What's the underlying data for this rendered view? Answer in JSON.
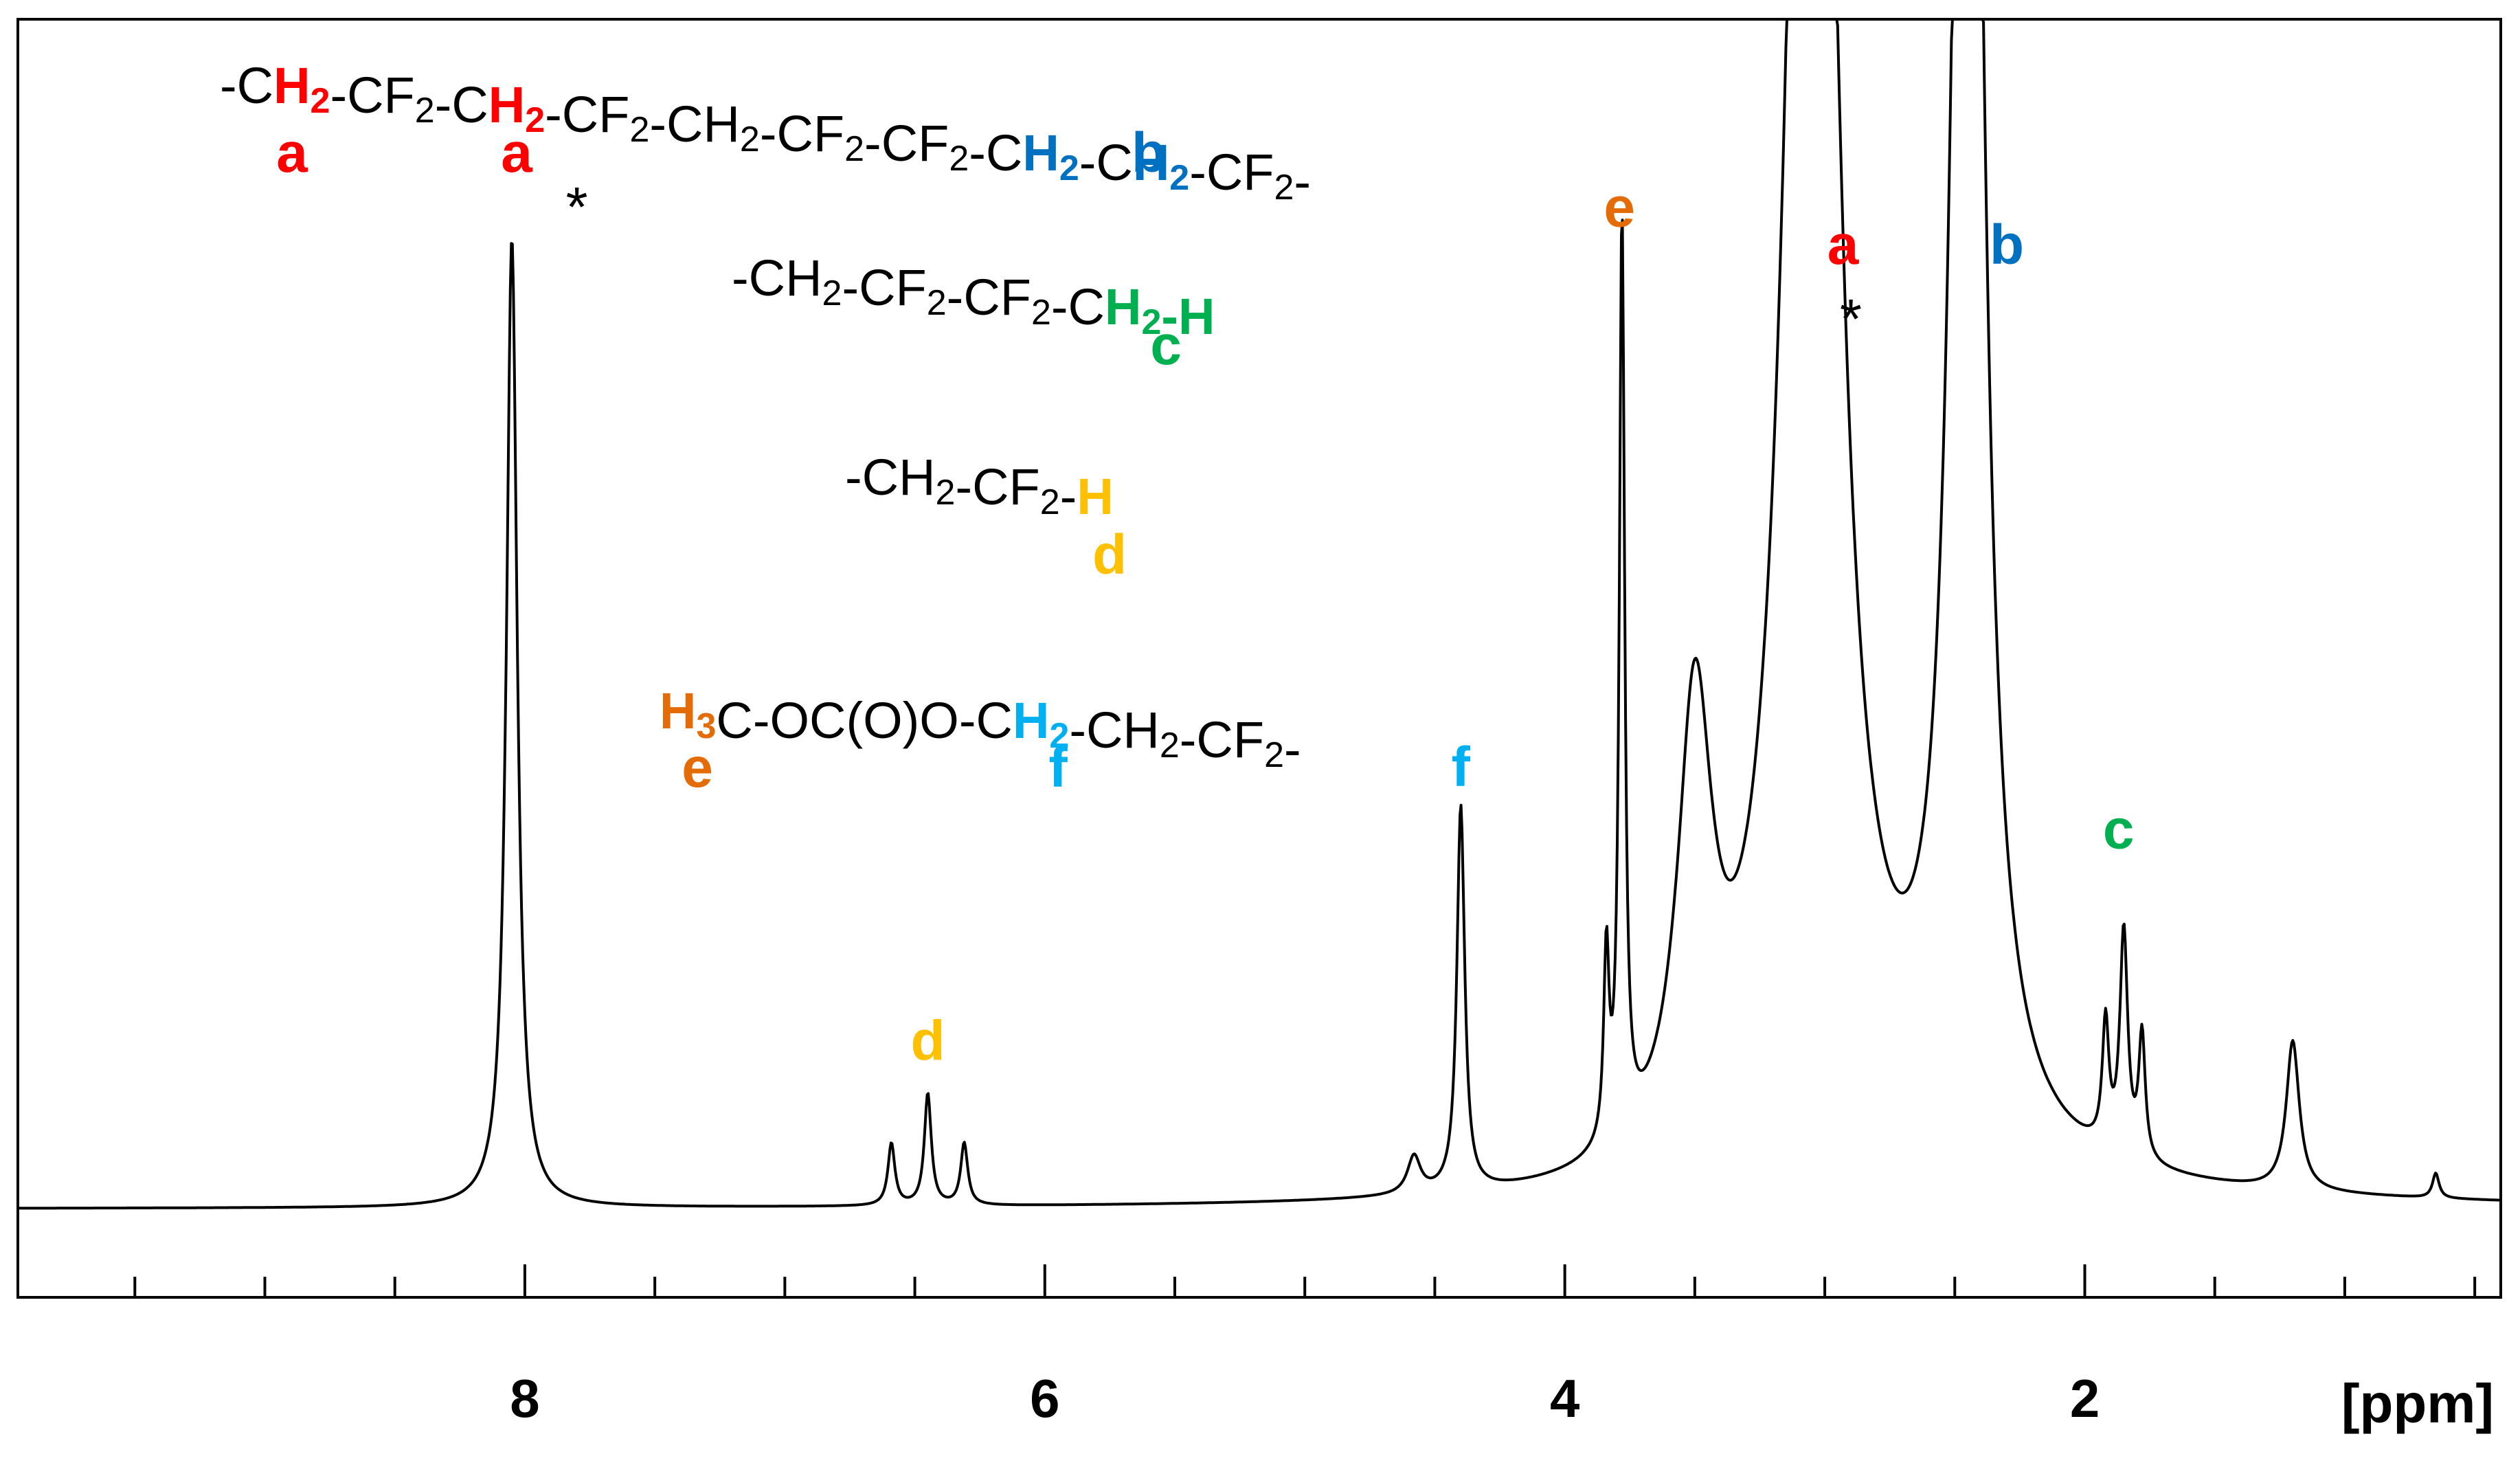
{
  "colors": {
    "a": "#ff0000",
    "b": "#0070c0",
    "c": "#00b050",
    "d": "#ffc000",
    "e": "#e36c09",
    "f": "#00b0f0",
    "text": "#000000"
  },
  "chart_data": {
    "type": "line",
    "xlabel": "[ppm]",
    "x_reversed": true,
    "xlim": [
      9.95,
      0.4
    ],
    "ylim": [
      0,
      1
    ],
    "grid": false,
    "major_ticks": [
      8,
      6,
      4,
      2
    ],
    "major_tick_labels": [
      "8",
      "6",
      "4",
      "2"
    ],
    "minor_ticks": [
      9.5,
      9.0,
      8.5,
      7.5,
      7.0,
      6.5,
      5.5,
      5.0,
      4.5,
      3.5,
      3.0,
      2.5,
      1.5,
      1.0,
      0.5
    ],
    "baseline": 0.05,
    "peaks": [
      {
        "ppm": 8.05,
        "height": 0.78,
        "width": 0.025
      },
      {
        "ppm": 6.59,
        "height": 0.05,
        "width": 0.016
      },
      {
        "ppm": 6.45,
        "height": 0.09,
        "width": 0.016
      },
      {
        "ppm": 6.31,
        "height": 0.05,
        "width": 0.016
      },
      {
        "ppm": 4.58,
        "height": 0.03,
        "width": 0.03
      },
      {
        "ppm": 4.4,
        "height": 0.31,
        "width": 0.018
      },
      {
        "ppm": 3.78,
        "height": 0.74,
        "width": 0.012
      },
      {
        "ppm": 3.84,
        "height": 0.15,
        "width": 0.012
      },
      {
        "ppm": 3.5,
        "height": 0.35,
        "width": 0.08
      },
      {
        "ppm": 3.05,
        "height": 1.8,
        "width": 0.1
      },
      {
        "ppm": 2.45,
        "height": 1.8,
        "width": 0.06
      },
      {
        "ppm": 1.85,
        "height": 0.18,
        "width": 0.018
      },
      {
        "ppm": 1.92,
        "height": 0.1,
        "width": 0.015
      },
      {
        "ppm": 1.78,
        "height": 0.1,
        "width": 0.015
      },
      {
        "ppm": 1.2,
        "height": 0.12,
        "width": 0.03
      },
      {
        "ppm": 0.65,
        "height": 0.02,
        "width": 0.015
      }
    ],
    "peak_labels": [
      {
        "text": "a",
        "ppm": 2.93,
        "y": 0.81,
        "color_key": "a"
      },
      {
        "text": "b",
        "ppm": 2.3,
        "y": 0.81,
        "color_key": "b"
      },
      {
        "text": "c",
        "ppm": 1.87,
        "y": 0.34,
        "color_key": "c"
      },
      {
        "text": "d",
        "ppm": 6.45,
        "y": 0.17,
        "color_key": "d"
      },
      {
        "text": "e",
        "ppm": 3.79,
        "y": 0.84,
        "color_key": "e"
      },
      {
        "text": "f",
        "ppm": 4.4,
        "y": 0.39,
        "color_key": "f"
      }
    ],
    "asterisks": [
      {
        "text": "*",
        "ppm": 7.8,
        "y": 0.84
      },
      {
        "text": "*",
        "ppm": 2.9,
        "y": 0.75
      }
    ]
  },
  "structures": [
    {
      "segments": [
        {
          "t": "-C",
          "c": "text"
        },
        {
          "t": "H2",
          "c": "a",
          "hl": true
        },
        {
          "t": "-CF2-C",
          "c": "text"
        },
        {
          "t": "H2",
          "c": "a",
          "hl": true
        },
        {
          "t": "-CF2-CH2-CF2-CF2-C",
          "c": "text"
        },
        {
          "t": "H2",
          "c": "b",
          "hl": true
        },
        {
          "t": "-C",
          "c": "text"
        },
        {
          "t": "H2",
          "c": "b",
          "hl": true
        },
        {
          "t": "-CF2-",
          "c": "text"
        }
      ],
      "labels": [
        {
          "text": "a",
          "color_key": "a"
        },
        {
          "text": "a",
          "color_key": "a"
        },
        {
          "text": "b",
          "color_key": "b"
        }
      ]
    },
    {
      "segments": [
        {
          "t": "-CH2-CF2-CF2-C",
          "c": "text"
        },
        {
          "t": "H2-H",
          "c": "c",
          "hl": true
        }
      ],
      "labels": [
        {
          "text": "c",
          "color_key": "c"
        }
      ]
    },
    {
      "segments": [
        {
          "t": "-CH2-CF2-",
          "c": "text"
        },
        {
          "t": "H",
          "c": "d",
          "hl": true
        }
      ],
      "labels": [
        {
          "text": "d",
          "color_key": "d"
        }
      ]
    },
    {
      "segments": [
        {
          "t": "H3",
          "c": "e",
          "hl": true
        },
        {
          "t": "C-OC(O)O-C",
          "c": "text"
        },
        {
          "t": "H2",
          "c": "f",
          "hl": true
        },
        {
          "t": "-CH2-CF2-",
          "c": "text"
        }
      ],
      "labels": [
        {
          "text": "e",
          "color_key": "e"
        },
        {
          "text": "f",
          "color_key": "f"
        }
      ]
    }
  ]
}
